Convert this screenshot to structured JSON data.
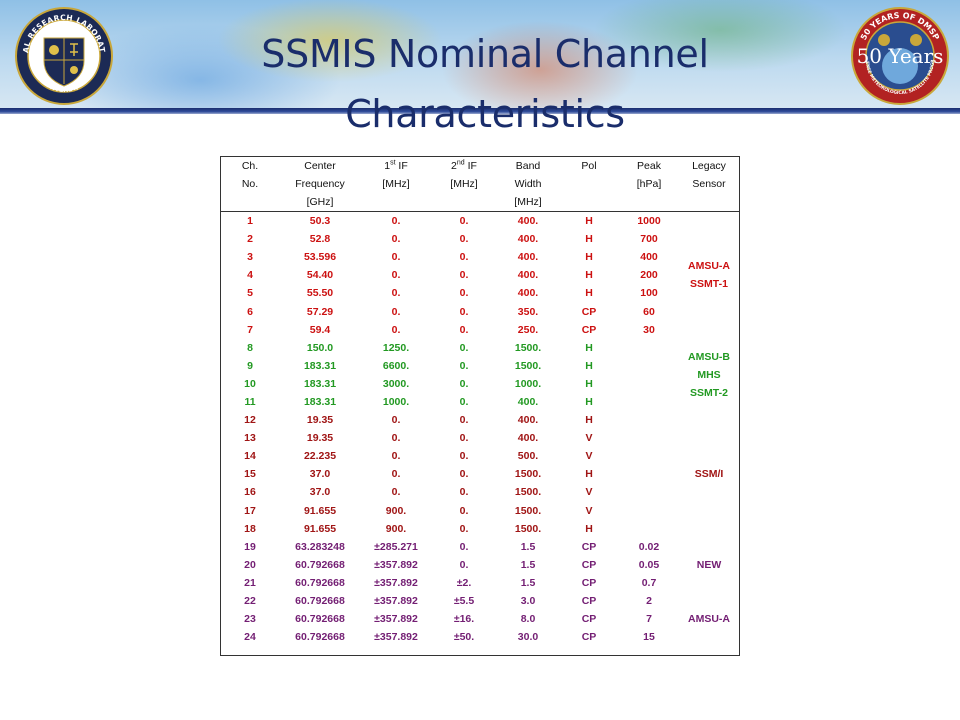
{
  "page": {
    "title": "SSMIS Nominal Channel Characteristics",
    "logo_left_text": [
      "NAVAL RESEARCH LABORATORY",
      "MONTEREY, CA"
    ],
    "logo_right_text": [
      "50 YEARS OF DMSP",
      "DEFENSE METEOROLOGICAL SATELLITE PROGRAM",
      "50 Years"
    ]
  },
  "colors": {
    "title": "#1a2d6b",
    "group_amsu_a": "#cc1111",
    "group_amsu_b": "#229922",
    "group_ssmi": "#a01515",
    "group_new": "#731e73"
  },
  "table": {
    "headers": {
      "ch": [
        "Ch.",
        "No."
      ],
      "freq": [
        "Center",
        "Frequency",
        "[GHz]"
      ],
      "if1": {
        "num": "1",
        "sup": "st",
        "label": " IF",
        "unit": "[MHz]"
      },
      "if2": {
        "num": "2",
        "sup": "nd",
        "label": " IF",
        "unit": "[MHz]"
      },
      "band": [
        "Band",
        "Width",
        "[MHz]"
      ],
      "pol": "Pol",
      "peak": [
        "Peak",
        "[hPa]"
      ],
      "legacy": [
        "Legacy",
        "Sensor"
      ]
    },
    "rows": [
      {
        "ch": "1",
        "freq": "50.3",
        "if1": "0.",
        "if2": "0.",
        "bw": "400.",
        "pol": "H",
        "peak": "1000"
      },
      {
        "ch": "2",
        "freq": "52.8",
        "if1": "0.",
        "if2": "0.",
        "bw": "400.",
        "pol": "H",
        "peak": "700"
      },
      {
        "ch": "3",
        "freq": "53.596",
        "if1": "0.",
        "if2": "0.",
        "bw": "400.",
        "pol": "H",
        "peak": "400"
      },
      {
        "ch": "4",
        "freq": "54.40",
        "if1": "0.",
        "if2": "0.",
        "bw": "400.",
        "pol": "H",
        "peak": "200"
      },
      {
        "ch": "5",
        "freq": "55.50",
        "if1": "0.",
        "if2": "0.",
        "bw": "400.",
        "pol": "H",
        "peak": "100"
      },
      {
        "ch": "6",
        "freq": "57.29",
        "if1": "0.",
        "if2": "0.",
        "bw": "350.",
        "pol": "CP",
        "peak": "60"
      },
      {
        "ch": "7",
        "freq": "59.4",
        "if1": "0.",
        "if2": "0.",
        "bw": "250.",
        "pol": "CP",
        "peak": "30"
      },
      {
        "ch": "8",
        "freq": "150.0",
        "if1": "1250.",
        "if2": "0.",
        "bw": "1500.",
        "pol": "H",
        "peak": ""
      },
      {
        "ch": "9",
        "freq": "183.31",
        "if1": "6600.",
        "if2": "0.",
        "bw": "1500.",
        "pol": "H",
        "peak": ""
      },
      {
        "ch": "10",
        "freq": "183.31",
        "if1": "3000.",
        "if2": "0.",
        "bw": "1000.",
        "pol": "H",
        "peak": ""
      },
      {
        "ch": "11",
        "freq": "183.31",
        "if1": "1000.",
        "if2": "0.",
        "bw": "400.",
        "pol": "H",
        "peak": ""
      },
      {
        "ch": "12",
        "freq": "19.35",
        "if1": "0.",
        "if2": "0.",
        "bw": "400.",
        "pol": "H",
        "peak": ""
      },
      {
        "ch": "13",
        "freq": "19.35",
        "if1": "0.",
        "if2": "0.",
        "bw": "400.",
        "pol": "V",
        "peak": ""
      },
      {
        "ch": "14",
        "freq": "22.235",
        "if1": "0.",
        "if2": "0.",
        "bw": "500.",
        "pol": "V",
        "peak": ""
      },
      {
        "ch": "15",
        "freq": "37.0",
        "if1": "0.",
        "if2": "0.",
        "bw": "1500.",
        "pol": "H",
        "peak": ""
      },
      {
        "ch": "16",
        "freq": "37.0",
        "if1": "0.",
        "if2": "0.",
        "bw": "1500.",
        "pol": "V",
        "peak": ""
      },
      {
        "ch": "17",
        "freq": "91.655",
        "if1": "900.",
        "if2": "0.",
        "bw": "1500.",
        "pol": "V",
        "peak": ""
      },
      {
        "ch": "18",
        "freq": "91.655",
        "if1": "900.",
        "if2": "0.",
        "bw": "1500.",
        "pol": "H",
        "peak": ""
      },
      {
        "ch": "19",
        "freq": "63.283248",
        "if1": "±285.271",
        "if2": "0.",
        "bw": "1.5",
        "pol": "CP",
        "peak": "0.02"
      },
      {
        "ch": "20",
        "freq": "60.792668",
        "if1": "±357.892",
        "if2": "0.",
        "bw": "1.5",
        "pol": "CP",
        "peak": "0.05"
      },
      {
        "ch": "21",
        "freq": "60.792668",
        "if1": "±357.892",
        "if2": "±2.",
        "bw": "1.5",
        "pol": "CP",
        "peak": "0.7"
      },
      {
        "ch": "22",
        "freq": "60.792668",
        "if1": "±357.892",
        "if2": "±5.5",
        "bw": "3.0",
        "pol": "CP",
        "peak": "2"
      },
      {
        "ch": "23",
        "freq": "60.792668",
        "if1": "±357.892",
        "if2": "±16.",
        "bw": "8.0",
        "pol": "CP",
        "peak": "7"
      },
      {
        "ch": "24",
        "freq": "60.792668",
        "if1": "±357.892",
        "if2": "±50.",
        "bw": "30.0",
        "pol": "CP",
        "peak": "15"
      }
    ],
    "legacy": {
      "amsu_a": [
        "AMSU-A",
        "SSMT-1"
      ],
      "amsu_b": [
        "AMSU-B",
        "MHS",
        "SSMT-2"
      ],
      "ssmi": "SSM/I",
      "new": "NEW",
      "amsu_a_2": "AMSU-A"
    }
  }
}
